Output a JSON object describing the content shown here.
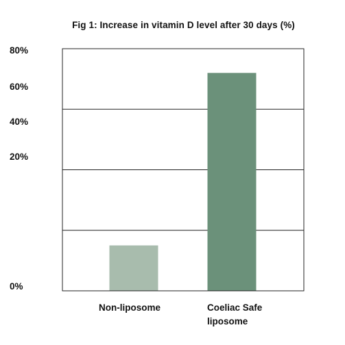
{
  "chart_data": {
    "type": "bar",
    "title": "Fig 1: Increase in vitamin D level after 30 days (%)",
    "xlabel": "",
    "ylabel": "",
    "categories": [
      "Non-liposome",
      "Coeliac Safe liposome"
    ],
    "category_lines": [
      [
        "Non-liposome"
      ],
      [
        "Coeliac Safe",
        "liposome"
      ]
    ],
    "values": [
      15,
      72
    ],
    "ylim": [
      0,
      80
    ],
    "yticks": [
      "80%",
      "60%",
      "40%",
      "20%",
      "0%"
    ],
    "grid": true,
    "legend": "none",
    "colors": [
      "#a8bcad",
      "#6b917a"
    ]
  }
}
